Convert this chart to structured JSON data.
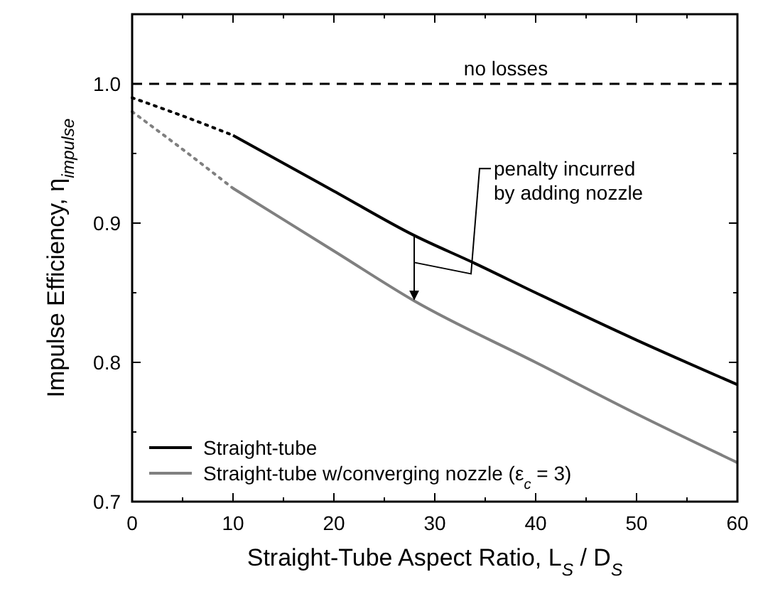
{
  "chart_data": {
    "type": "line",
    "xlabel": "Straight-Tube Aspect Ratio, L$_{S}$ / D$_{S}$",
    "ylabel": "Impulse Efficiency, η$_{impulse}$",
    "xlim": [
      0,
      60
    ],
    "ylim": [
      0.7,
      1.05
    ],
    "xticks": [
      0,
      {
        "value": 5,
        "label": null
      },
      10,
      {
        "value": 15,
        "label": null
      },
      20,
      {
        "value": 25,
        "label": null
      },
      30,
      {
        "value": 35,
        "label": null
      },
      40,
      {
        "value": 45,
        "label": null
      },
      50,
      {
        "value": 55,
        "label": null
      },
      60
    ],
    "yticks": [
      0.7,
      {
        "value": 0.75,
        "label": null
      },
      0.8,
      {
        "value": 0.85,
        "label": null
      },
      0.9,
      {
        "value": 0.95,
        "label": null
      },
      {
        "value": 1.0,
        "label": "1.0"
      },
      {
        "value": 1.05,
        "label": null
      }
    ],
    "series": [
      {
        "name": "Straight-tube",
        "color": "#000000",
        "line_style": "solid",
        "x": [
          10,
          20,
          28,
          34,
          40,
          50,
          60
        ],
        "values": [
          0.963,
          0.923,
          0.891,
          0.871,
          0.85,
          0.816,
          0.784
        ]
      },
      {
        "name": "Straight-tube w/converging nozzle (ε$_{c}$ = 3)",
        "color": "#808080",
        "line_style": "solid",
        "x": [
          10,
          20,
          28,
          40,
          50,
          60
        ],
        "values": [
          0.925,
          0.88,
          0.844,
          0.8,
          0.763,
          0.728
        ]
      },
      {
        "color": "#000000",
        "line_style": "dotted",
        "x": [
          0,
          5,
          10
        ],
        "values": [
          0.99,
          0.977,
          0.963
        ]
      },
      {
        "color": "#808080",
        "line_style": "dotted",
        "x": [
          0,
          5,
          10
        ],
        "values": [
          0.98,
          0.953,
          0.925
        ]
      }
    ],
    "ref_lines": [
      {
        "axis": "y",
        "value": 1.0,
        "label": "no losses",
        "color": "#000000",
        "line_style": "dashed"
      }
    ],
    "annotations": [
      "penalty incurred\nby adding nozzle"
    ],
    "legend": "bottom left",
    "marker": "none",
    "grid": false
  }
}
